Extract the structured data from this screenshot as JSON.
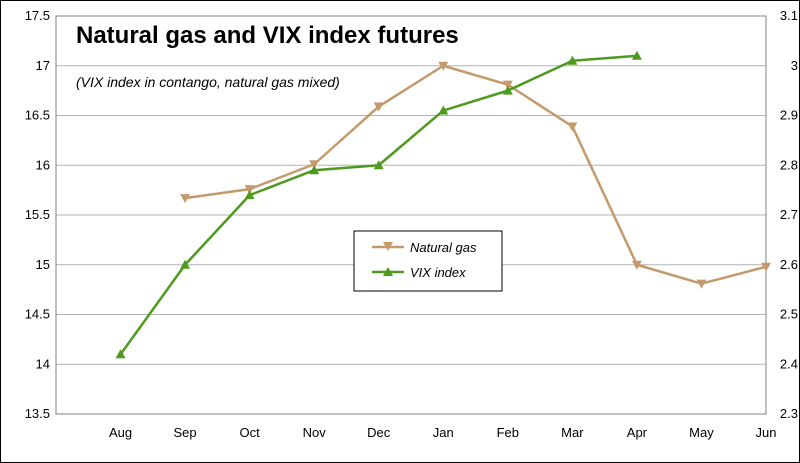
{
  "chart_data": {
    "type": "line",
    "title": "Natural gas and VIX index futures",
    "subtitle": "(VIX index in contango, natural gas mixed)",
    "categories": [
      "Aug",
      "Sep",
      "Oct",
      "Nov",
      "Dec",
      "Jan",
      "Feb",
      "Mar",
      "Apr",
      "May",
      "Jun"
    ],
    "y_left": {
      "min": 13.5,
      "max": 17.5,
      "step": 0.5,
      "ticks": [
        "13.5",
        "14",
        "14.5",
        "15",
        "15.5",
        "16",
        "16.5",
        "17",
        "17.5"
      ]
    },
    "y_right": {
      "min": 2.3,
      "max": 3.1,
      "step": 0.1,
      "ticks": [
        "2.3",
        "2.4",
        "2.5",
        "2.6",
        "2.7",
        "2.8",
        "2.9",
        "3",
        "3.1"
      ]
    },
    "grid": true,
    "legend_position": "center",
    "series": [
      {
        "name": "Natural gas",
        "axis": "left",
        "color": "#c49a6c",
        "marker": "triangle-down",
        "values": [
          null,
          15.67,
          15.76,
          16.01,
          16.59,
          17.0,
          16.81,
          16.39,
          15.0,
          14.81,
          14.98
        ]
      },
      {
        "name": "VIX index",
        "axis": "right",
        "color": "#4e9a1e",
        "marker": "triangle-up",
        "values": [
          2.42,
          2.6,
          2.74,
          2.79,
          2.8,
          2.91,
          2.95,
          3.01,
          3.02,
          null,
          null
        ]
      }
    ]
  }
}
